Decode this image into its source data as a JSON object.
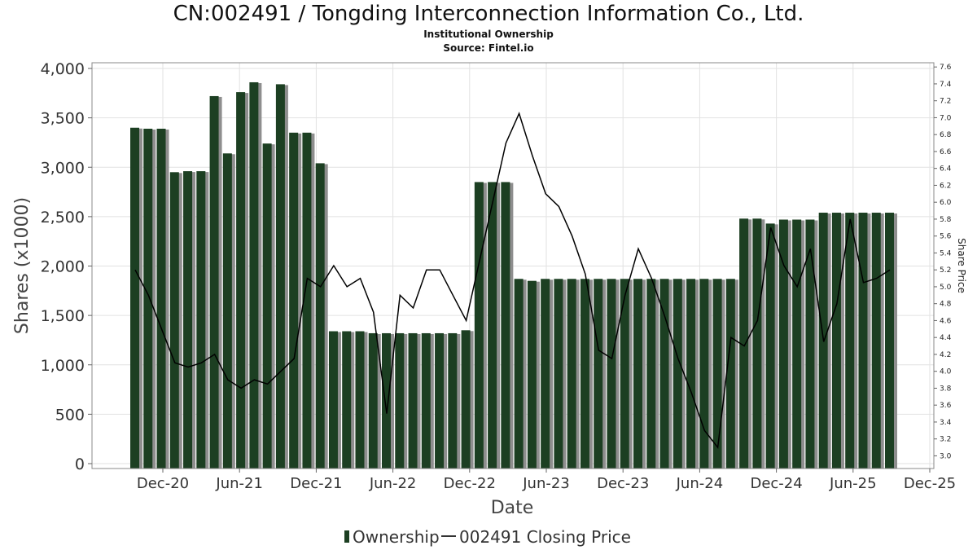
{
  "chart_data": {
    "type": "bar+line",
    "title": "CN:002491 / Tongding Interconnection Information Co., Ltd.",
    "subtitle": "Institutional Ownership",
    "source": "Source: Fintel.io",
    "xlabel": "Date",
    "ylabel": "Shares (x1000)",
    "y2label": "Share Price",
    "ylim": [
      0,
      4000
    ],
    "y2lim": [
      2.85,
      7.65
    ],
    "yticks": [
      "0",
      "500",
      "1,000",
      "1,500",
      "2,000",
      "2,500",
      "3,000",
      "3,500",
      "4,000"
    ],
    "y2ticks": [
      "3.0",
      "3.2",
      "3.4",
      "3.6",
      "3.8",
      "4.0",
      "4.2",
      "4.4",
      "4.6",
      "4.8",
      "5.0",
      "5.2",
      "5.4",
      "5.6",
      "5.8",
      "6.0",
      "6.2",
      "6.4",
      "6.6",
      "6.8",
      "7.0",
      "7.2",
      "7.4",
      "7.6"
    ],
    "xticks": [
      "Dec-20",
      "Jun-21",
      "Dec-21",
      "Jun-22",
      "Dec-22",
      "Jun-23",
      "Dec-23",
      "Jun-24",
      "Dec-24",
      "Jun-25",
      "Dec-25"
    ],
    "grid": true,
    "legend_position": "bottom",
    "series": [
      {
        "name": "Ownership",
        "kind": "bar",
        "color": "#1c3f22",
        "values": [
          3400,
          3390,
          3390,
          2950,
          2960,
          2960,
          3720,
          3140,
          3760,
          3860,
          3240,
          3840,
          3350,
          3350,
          3040,
          1340,
          1340,
          1340,
          1320,
          1320,
          1320,
          1320,
          1320,
          1320,
          1320,
          1350,
          2850,
          2850,
          2850,
          1870,
          1850,
          1870,
          1870,
          1870,
          1870,
          1870,
          1870,
          1870,
          1870,
          1870,
          1870,
          1870,
          1870,
          1870,
          1870,
          1870,
          2480,
          2480,
          2430,
          2470,
          2470,
          2470,
          2540,
          2540,
          2540,
          2540,
          2540,
          2540
        ]
      },
      {
        "name": "002491 Closing Price",
        "kind": "line",
        "color": "#000000",
        "values": [
          5.2,
          4.9,
          4.5,
          4.1,
          4.05,
          4.1,
          4.2,
          3.9,
          3.8,
          3.9,
          3.85,
          4.0,
          4.15,
          5.1,
          5.0,
          5.25,
          5.0,
          5.1,
          4.7,
          3.5,
          4.9,
          4.75,
          5.2,
          5.2,
          4.9,
          4.6,
          5.3,
          6.0,
          6.7,
          7.05,
          6.55,
          6.1,
          5.95,
          5.6,
          5.15,
          4.25,
          4.15,
          4.9,
          5.45,
          5.1,
          4.65,
          4.15,
          3.75,
          3.3,
          3.1,
          4.4,
          4.3,
          4.6,
          5.7,
          5.25,
          5.0,
          5.45,
          4.35,
          4.8,
          5.8,
          5.05,
          5.1,
          5.2
        ]
      }
    ]
  }
}
